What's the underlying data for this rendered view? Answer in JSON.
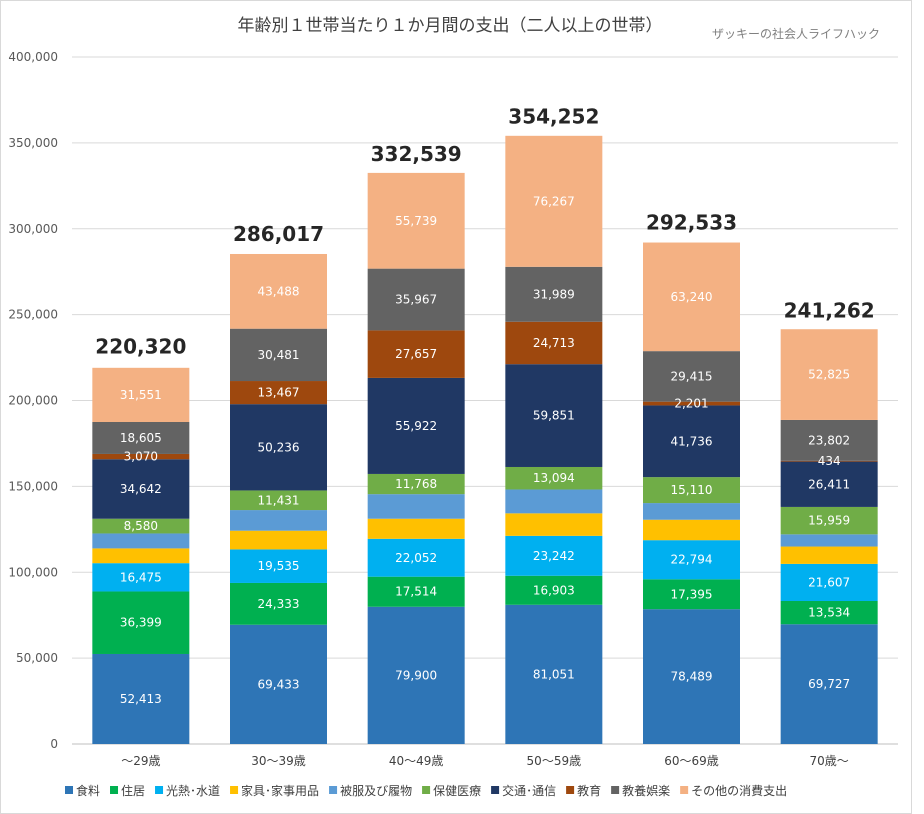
{
  "chart_data": {
    "type": "bar",
    "stacked": true,
    "title": "年齢別１世帯当たり１か月間の支出（二人以上の世帯）",
    "watermark": "ザッキーの社会人ライフハック",
    "categories": [
      "～29歳",
      "30～39歳",
      "40～49歳",
      "50～59歳",
      "60～69歳",
      "70歳～"
    ],
    "ylim": [
      0,
      400000
    ],
    "yticks": [
      0,
      50000,
      100000,
      150000,
      200000,
      250000,
      300000,
      350000,
      400000
    ],
    "ytick_labels": [
      "0",
      "50,000",
      "100,000",
      "150,000",
      "200,000",
      "250,000",
      "300,000",
      "350,000",
      "400,000"
    ],
    "grid": true,
    "legend_position": "bottom",
    "totals": [
      220320,
      286017,
      332539,
      354252,
      292533,
      241262
    ],
    "total_labels": [
      "220,320",
      "286,017",
      "332,539",
      "354,252",
      "292,533",
      "241,262"
    ],
    "series": [
      {
        "name": "食料",
        "color": "#2e75b6",
        "label_color": "#ffffff",
        "values": [
          52413,
          69433,
          79900,
          81051,
          78489,
          69727
        ],
        "labels": [
          "52,413",
          "69,433",
          "79,900",
          "81,051",
          "78,489",
          "69,727"
        ]
      },
      {
        "name": "住居",
        "color": "#00b050",
        "label_color": "#ffffff",
        "values": [
          36399,
          24333,
          17514,
          16903,
          17395,
          13534
        ],
        "labels": [
          "36,399",
          "24,333",
          "17,514",
          "16,903",
          "17,395",
          "13,534"
        ]
      },
      {
        "name": "光熱･水道",
        "color": "#00b0f0",
        "label_color": "#ffffff",
        "values": [
          16475,
          19535,
          22052,
          23242,
          22794,
          21607
        ],
        "labels": [
          "16,475",
          "19,535",
          "22,052",
          "23,242",
          "22,794",
          "21,607"
        ]
      },
      {
        "name": "家具･家事用品",
        "color": "#ffc000",
        "label_color": "#ffffff",
        "values": [
          8600,
          10900,
          11700,
          13100,
          11900,
          10100
        ],
        "labels": [
          "",
          "",
          "",
          "",
          "",
          ""
        ]
      },
      {
        "name": "被服及び履物",
        "color": "#5b9bd5",
        "label_color": "#ffffff",
        "values": [
          8700,
          12000,
          14300,
          13900,
          9700,
          7100
        ],
        "labels": [
          "",
          "",
          "",
          "",
          "",
          ""
        ]
      },
      {
        "name": "保健医療",
        "color": "#70ad47",
        "label_color": "#ffffff",
        "values": [
          8580,
          11431,
          11768,
          13094,
          15110,
          15959
        ],
        "labels": [
          "8,580",
          "11,431",
          "11,768",
          "13,094",
          "15,110",
          "15,959"
        ]
      },
      {
        "name": "交通･通信",
        "color": "#203864",
        "label_color": "#ffffff",
        "values": [
          34642,
          50236,
          55922,
          59851,
          41736,
          26411
        ],
        "labels": [
          "34,642",
          "50,236",
          "55,922",
          "59,851",
          "41,736",
          "26,411"
        ]
      },
      {
        "name": "教育",
        "color": "#9e480e",
        "label_color": "#ffffff",
        "values": [
          3070,
          13467,
          27657,
          24713,
          2201,
          434
        ],
        "labels": [
          "3,070",
          "13,467",
          "27,657",
          "24,713",
          "2,201",
          "434"
        ]
      },
      {
        "name": "教養娯楽",
        "color": "#636363",
        "label_color": "#ffffff",
        "values": [
          18605,
          30481,
          35967,
          31989,
          29415,
          23802
        ],
        "labels": [
          "18,605",
          "30,481",
          "35,967",
          "31,989",
          "29,415",
          "23,802"
        ]
      },
      {
        "name": "その他の消費支出",
        "color": "#f4b183",
        "label_color": "#ffffff",
        "values": [
          31551,
          43488,
          55739,
          76267,
          63240,
          52825
        ],
        "labels": [
          "31,551",
          "43,488",
          "55,739",
          "76,267",
          "63,240",
          "52,825"
        ]
      }
    ]
  }
}
